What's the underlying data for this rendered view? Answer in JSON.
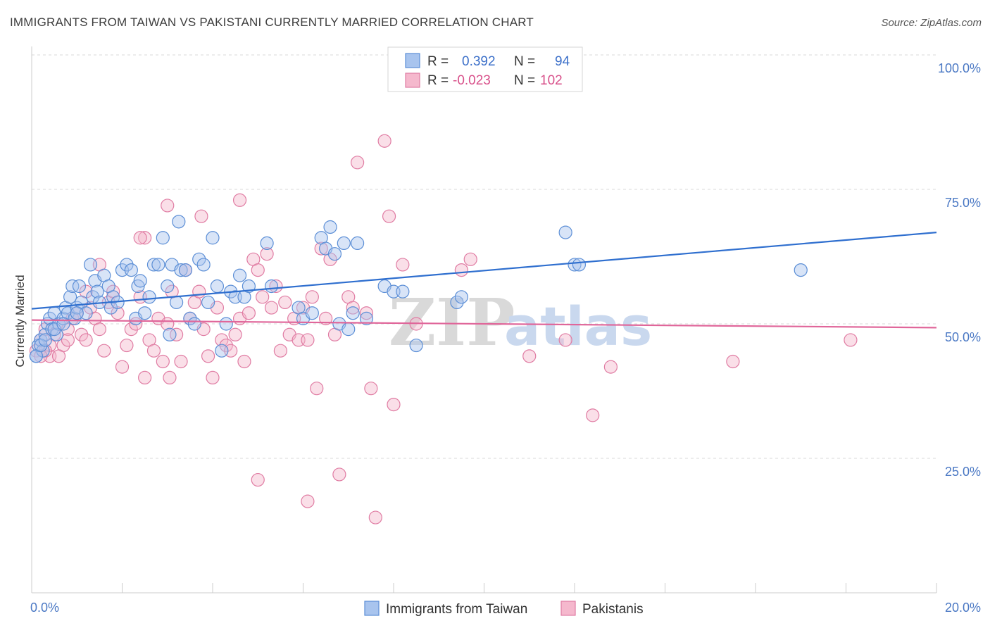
{
  "title": "IMMIGRANTS FROM TAIWAN VS PAKISTANI CURRENTLY MARRIED CORRELATION CHART",
  "source": "Source: ZipAtlas.com",
  "watermark": {
    "zip": "ZIP",
    "atlas": "atlas"
  },
  "colors": {
    "blue_fill": "#a8c4ee",
    "blue_stroke": "#5b8ed6",
    "blue_line": "#2f6fcf",
    "pink_fill": "#f5b8cd",
    "pink_stroke": "#e07ca3",
    "pink_line": "#e0669a",
    "grid": "#d9d9d9",
    "axis_text": "#4a78c4"
  },
  "legend_top": {
    "rows": [
      {
        "r_label": "R =",
        "r_value": "0.392",
        "n_label": "N =",
        "n_value": "94",
        "color": "blue"
      },
      {
        "r_label": "R =",
        "r_value": "-0.023",
        "n_label": "N =",
        "n_value": "102",
        "color": "pink"
      }
    ]
  },
  "legend_bottom": [
    "Immigrants from Taiwan",
    "Pakistanis"
  ],
  "chart_data": {
    "type": "scatter",
    "title": "IMMIGRANTS FROM TAIWAN VS PAKISTANI CURRENTLY MARRIED CORRELATION CHART",
    "xlabel": "",
    "ylabel": "Currently Married",
    "xlim": [
      0,
      20
    ],
    "ylim": [
      0,
      100
    ],
    "x_tick_labels": [
      "0.0%",
      "20.0%"
    ],
    "y_ticks": [
      25,
      50,
      75,
      100
    ],
    "y_tick_labels": [
      "25.0%",
      "50.0%",
      "75.0%",
      "100.0%"
    ],
    "legend_position": "top-center",
    "grid": true,
    "series": [
      {
        "name": "Immigrants from Taiwan",
        "color": "#5b8ed6",
        "R": 0.392,
        "N": 94,
        "trend": {
          "x": [
            0,
            20
          ],
          "y": [
            52.8,
            67.0
          ]
        },
        "points": [
          [
            0.1,
            44
          ],
          [
            0.15,
            46
          ],
          [
            0.2,
            47
          ],
          [
            0.25,
            45
          ],
          [
            0.3,
            48
          ],
          [
            0.35,
            50
          ],
          [
            0.4,
            51
          ],
          [
            0.45,
            49
          ],
          [
            0.5,
            52
          ],
          [
            0.55,
            48
          ],
          [
            0.6,
            50
          ],
          [
            0.7,
            51
          ],
          [
            0.75,
            53
          ],
          [
            0.8,
            52
          ],
          [
            0.85,
            55
          ],
          [
            0.9,
            57
          ],
          [
            0.95,
            51
          ],
          [
            1.0,
            53
          ],
          [
            1.05,
            57
          ],
          [
            1.1,
            54
          ],
          [
            1.2,
            52
          ],
          [
            1.3,
            61
          ],
          [
            1.35,
            55
          ],
          [
            1.4,
            58
          ],
          [
            1.45,
            56
          ],
          [
            1.5,
            54
          ],
          [
            1.6,
            59
          ],
          [
            1.7,
            57
          ],
          [
            1.75,
            53
          ],
          [
            1.8,
            55
          ],
          [
            1.9,
            54
          ],
          [
            2.0,
            60
          ],
          [
            2.1,
            61
          ],
          [
            2.2,
            60
          ],
          [
            2.3,
            51
          ],
          [
            2.35,
            57
          ],
          [
            2.4,
            58
          ],
          [
            2.5,
            52
          ],
          [
            2.6,
            55
          ],
          [
            2.7,
            61
          ],
          [
            2.8,
            61
          ],
          [
            2.9,
            66
          ],
          [
            3.0,
            57
          ],
          [
            3.05,
            48
          ],
          [
            3.1,
            61
          ],
          [
            3.2,
            54
          ],
          [
            3.25,
            69
          ],
          [
            3.3,
            60
          ],
          [
            3.4,
            60
          ],
          [
            3.5,
            51
          ],
          [
            3.6,
            50
          ],
          [
            3.7,
            62
          ],
          [
            3.8,
            61
          ],
          [
            3.9,
            54
          ],
          [
            4.0,
            66
          ],
          [
            4.1,
            57
          ],
          [
            4.2,
            45
          ],
          [
            4.3,
            50
          ],
          [
            4.4,
            56
          ],
          [
            4.5,
            55
          ],
          [
            4.6,
            59
          ],
          [
            4.7,
            55
          ],
          [
            4.8,
            57
          ],
          [
            5.2,
            65
          ],
          [
            5.3,
            57
          ],
          [
            5.9,
            53
          ],
          [
            6.0,
            51
          ],
          [
            6.2,
            52
          ],
          [
            6.4,
            66
          ],
          [
            6.5,
            64
          ],
          [
            6.6,
            68
          ],
          [
            6.7,
            63
          ],
          [
            6.8,
            50
          ],
          [
            6.9,
            65
          ],
          [
            7.0,
            49
          ],
          [
            7.1,
            52
          ],
          [
            7.2,
            65
          ],
          [
            7.4,
            51
          ],
          [
            7.8,
            57
          ],
          [
            8.0,
            56
          ],
          [
            8.2,
            56
          ],
          [
            8.5,
            46
          ],
          [
            9.4,
            54
          ],
          [
            9.5,
            55
          ],
          [
            11.8,
            67
          ],
          [
            12.0,
            61
          ],
          [
            12.1,
            61
          ],
          [
            17.0,
            60
          ],
          [
            0.1,
            44
          ],
          [
            0.2,
            46
          ],
          [
            0.3,
            47
          ],
          [
            0.5,
            49
          ],
          [
            0.7,
            50
          ],
          [
            1.0,
            52
          ]
        ]
      },
      {
        "name": "Pakistanis",
        "color": "#e07ca3",
        "R": -0.023,
        "N": 102,
        "trend": {
          "x": [
            0,
            20
          ],
          "y": [
            50.7,
            49.3
          ]
        },
        "points": [
          [
            0.1,
            45
          ],
          [
            0.2,
            47
          ],
          [
            0.3,
            49
          ],
          [
            0.4,
            44
          ],
          [
            0.5,
            48
          ],
          [
            0.6,
            50
          ],
          [
            0.7,
            46
          ],
          [
            0.8,
            49
          ],
          [
            0.9,
            51
          ],
          [
            1.0,
            52
          ],
          [
            1.1,
            48
          ],
          [
            1.2,
            47
          ],
          [
            1.3,
            53
          ],
          [
            1.4,
            51
          ],
          [
            1.5,
            49
          ],
          [
            1.6,
            45
          ],
          [
            1.7,
            54
          ],
          [
            1.8,
            56
          ],
          [
            1.9,
            52
          ],
          [
            2.0,
            42
          ],
          [
            2.1,
            46
          ],
          [
            2.2,
            49
          ],
          [
            2.3,
            50
          ],
          [
            2.4,
            55
          ],
          [
            2.5,
            40
          ],
          [
            2.6,
            47
          ],
          [
            2.7,
            45
          ],
          [
            2.8,
            51
          ],
          [
            2.9,
            43
          ],
          [
            3.0,
            50
          ],
          [
            3.05,
            40
          ],
          [
            3.1,
            56
          ],
          [
            3.2,
            48
          ],
          [
            3.3,
            43
          ],
          [
            3.4,
            60
          ],
          [
            3.5,
            51
          ],
          [
            3.6,
            54
          ],
          [
            3.7,
            56
          ],
          [
            3.75,
            70
          ],
          [
            3.8,
            49
          ],
          [
            3.9,
            44
          ],
          [
            4.0,
            40
          ],
          [
            4.1,
            53
          ],
          [
            4.2,
            47
          ],
          [
            4.3,
            46
          ],
          [
            4.4,
            45
          ],
          [
            4.5,
            48
          ],
          [
            4.6,
            51
          ],
          [
            4.7,
            43
          ],
          [
            4.8,
            52
          ],
          [
            4.9,
            62
          ],
          [
            5.0,
            60
          ],
          [
            5.1,
            55
          ],
          [
            5.2,
            63
          ],
          [
            5.3,
            53
          ],
          [
            5.4,
            57
          ],
          [
            5.5,
            45
          ],
          [
            5.6,
            54
          ],
          [
            5.7,
            48
          ],
          [
            5.8,
            51
          ],
          [
            5.9,
            47
          ],
          [
            6.0,
            53
          ],
          [
            6.1,
            47
          ],
          [
            6.2,
            55
          ],
          [
            6.3,
            38
          ],
          [
            6.4,
            64
          ],
          [
            6.5,
            51
          ],
          [
            6.6,
            62
          ],
          [
            6.7,
            48
          ],
          [
            6.8,
            22
          ],
          [
            7.0,
            55
          ],
          [
            7.1,
            53
          ],
          [
            7.2,
            80
          ],
          [
            7.4,
            52
          ],
          [
            7.5,
            38
          ],
          [
            7.6,
            14
          ],
          [
            7.8,
            84
          ],
          [
            7.9,
            70
          ],
          [
            8.0,
            35
          ],
          [
            8.2,
            61
          ],
          [
            8.5,
            50
          ],
          [
            9.5,
            60
          ],
          [
            9.7,
            62
          ],
          [
            11.0,
            44
          ],
          [
            11.8,
            47
          ],
          [
            12.4,
            33
          ],
          [
            12.8,
            42
          ],
          [
            15.5,
            43
          ],
          [
            18.1,
            47
          ],
          [
            6.1,
            17
          ],
          [
            4.6,
            73
          ],
          [
            5.0,
            21
          ],
          [
            3.0,
            72
          ],
          [
            2.5,
            66
          ],
          [
            2.4,
            66
          ],
          [
            1.5,
            61
          ],
          [
            1.2,
            56
          ],
          [
            0.8,
            47
          ],
          [
            0.6,
            44
          ],
          [
            0.4,
            46
          ],
          [
            0.3,
            45
          ],
          [
            0.2,
            44
          ]
        ]
      }
    ]
  }
}
